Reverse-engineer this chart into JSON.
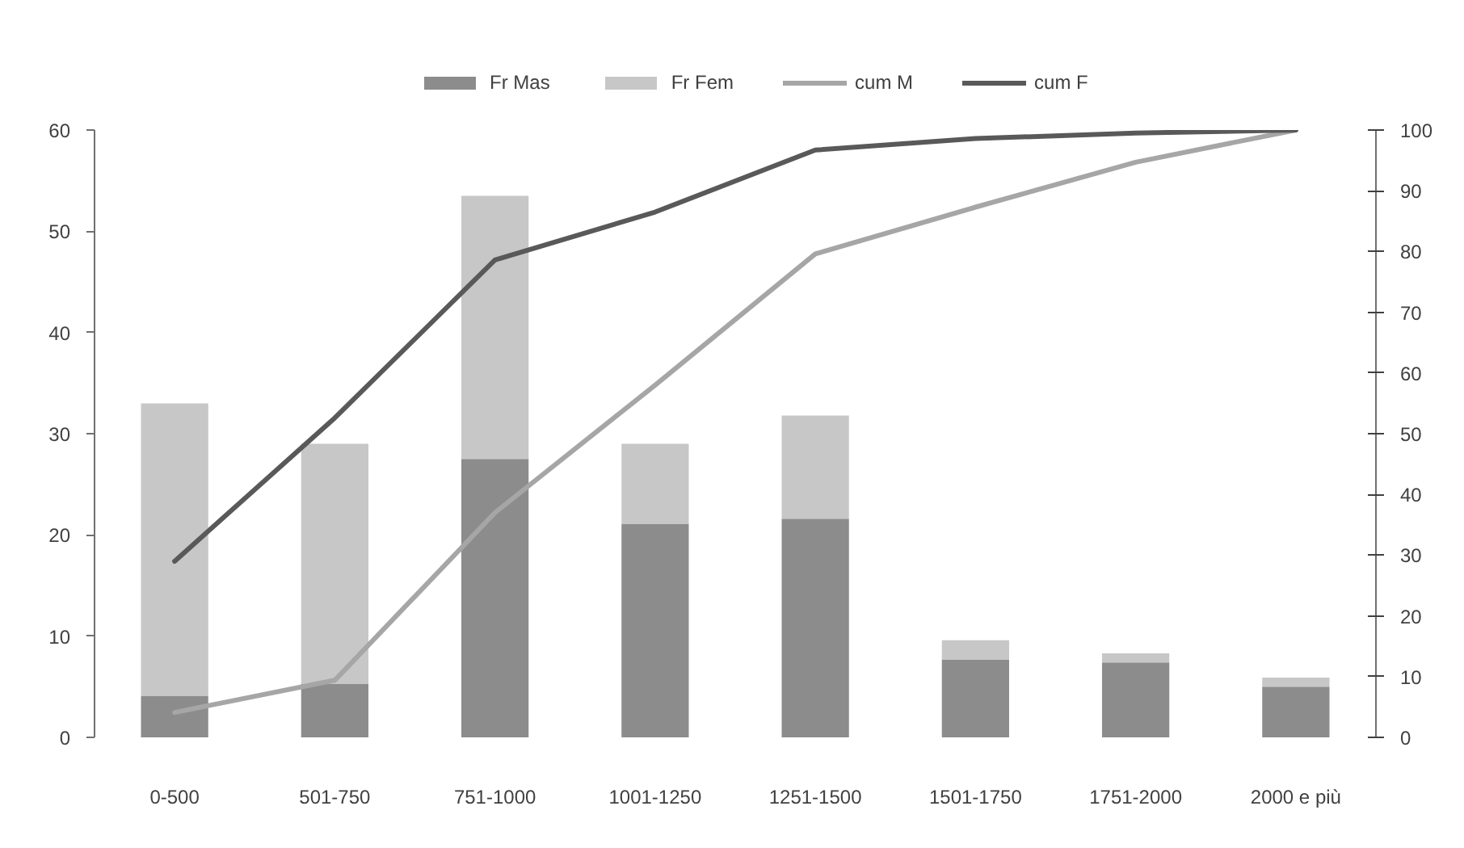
{
  "chart_data": {
    "type": "bar",
    "stacked": true,
    "categories": [
      "0-500",
      "501-750",
      "751-1000",
      "1001-1250",
      "1251-1500",
      "1501-1750",
      "1751-2000",
      "2000 e più"
    ],
    "series": [
      {
        "name": "Fr Mas",
        "color": "#8b8c8b",
        "values": [
          4.1,
          5.3,
          27.5,
          21.1,
          21.6,
          7.7,
          7.4,
          5.0
        ]
      },
      {
        "name": "Fr Fem",
        "color": "#c6c7c6",
        "values": [
          28.9,
          23.7,
          26.0,
          7.9,
          10.2,
          1.9,
          0.9,
          0.9
        ]
      },
      {
        "name": "cum M",
        "type": "line",
        "axis": "y2",
        "color": "#a6a6a6",
        "values": [
          4.1,
          9.4,
          37,
          58,
          79.6,
          87.3,
          94.7,
          100
        ]
      },
      {
        "name": "cum F",
        "type": "line",
        "axis": "y2",
        "color": "#595959",
        "values": [
          29,
          52.6,
          78.6,
          86.5,
          96.7,
          98.6,
          99.5,
          100
        ]
      }
    ],
    "ylim": [
      0,
      60
    ],
    "yticks": [
      0,
      10,
      20,
      30,
      40,
      50,
      60
    ],
    "y2lim": [
      0,
      100
    ],
    "y2ticks": [
      0,
      10,
      20,
      30,
      40,
      50,
      60,
      70,
      80,
      90,
      100
    ],
    "grid": false,
    "legend": "top",
    "line_style": "solid"
  }
}
